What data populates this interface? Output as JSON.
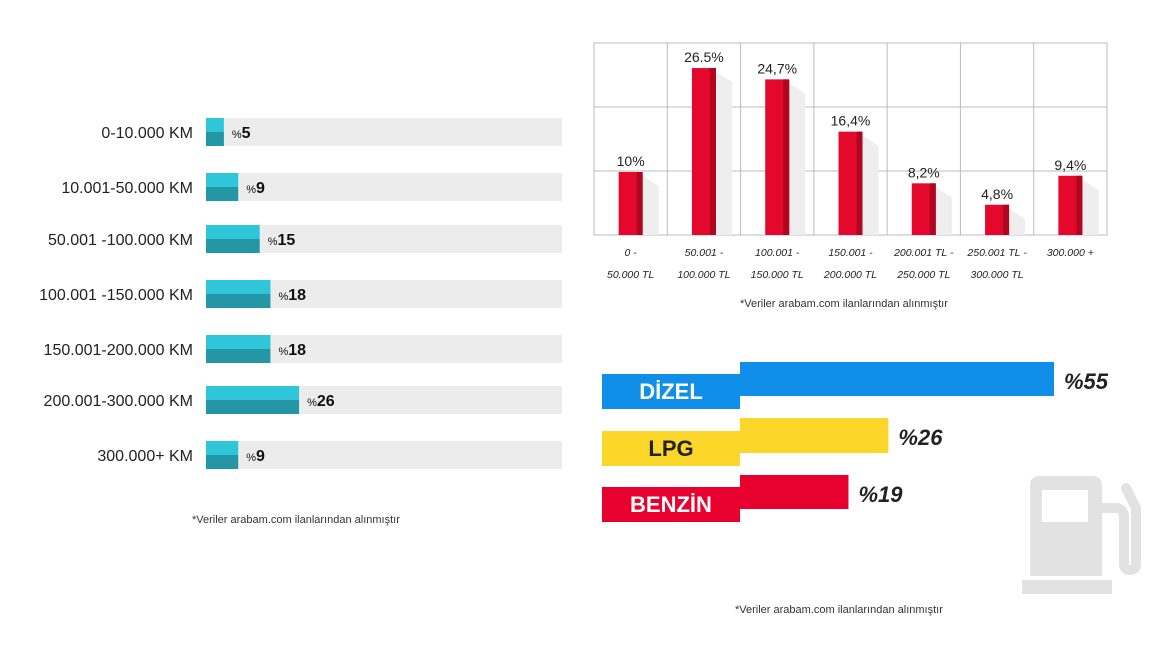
{
  "chart_data": [
    {
      "type": "bar",
      "orientation": "horizontal",
      "title": "",
      "categories": [
        "0-10.000 KM",
        "10.001-50.000 KM",
        "50.001 -100.000 KM",
        "100.001 -150.000 KM",
        "150.001-200.000 KM",
        "200.001-300.000 KM",
        "300.000+ KM"
      ],
      "values": [
        5,
        9,
        15,
        18,
        18,
        26,
        9
      ],
      "labels": [
        "5",
        "9",
        "15",
        "18",
        "18",
        "26",
        "9"
      ],
      "label_prefix": "%",
      "xlim": [
        0,
        100
      ],
      "grid": false,
      "note": "*Veriler arabam.com ilanlarından alınmıştır",
      "colors": {
        "bar_top": "#2ec6d8",
        "bar_bottom": "#2596a6",
        "track": "#ececec"
      }
    },
    {
      "type": "bar",
      "title": "",
      "categories": [
        [
          "0 -",
          "50.000 TL"
        ],
        [
          "50.001 -",
          "100.000 TL"
        ],
        [
          "100.001 -",
          "150.000 TL"
        ],
        [
          "150.001 -",
          "200.000 TL"
        ],
        [
          "200.001 TL -",
          "250.000 TL"
        ],
        [
          "250.001 TL -",
          "300.000 TL"
        ],
        [
          "300.000 +"
        ]
      ],
      "values": [
        10,
        26.5,
        24.7,
        16.4,
        8.2,
        4.8,
        9.4
      ],
      "labels": [
        "10%",
        "26.5%",
        "24,7%",
        "16,4%",
        "8,2%",
        "4,8%",
        "9,4%"
      ],
      "ylim": [
        0,
        30
      ],
      "grid": true,
      "note": "*Veriler arabam.com ilanlarından alınmıştır",
      "colors": {
        "bar": "#e4082c",
        "bar_dark": "#b0061f",
        "grid": "#bbbbbb"
      }
    },
    {
      "type": "bar",
      "orientation": "horizontal",
      "title": "",
      "categories": [
        "DİZEL",
        "LPG",
        "BENZİN"
      ],
      "values": [
        55,
        26,
        19
      ],
      "labels": [
        "%55",
        "%26",
        "%19"
      ],
      "xlim": [
        0,
        55
      ],
      "grid": false,
      "note": "*Veriler arabam.com ilanlarından alınmıştır",
      "colors": {
        "DİZEL": "#0f8fe8",
        "LPG": "#fcd72a",
        "BENZİN": "#e8002f"
      },
      "label_text_colors": {
        "DİZEL": "#ffffff",
        "LPG": "#222222",
        "BENZİN": "#ffffff"
      }
    }
  ],
  "icons": {
    "fuel_pump": "fuel-pump-icon",
    "pump_color": "#e2e2e2"
  }
}
